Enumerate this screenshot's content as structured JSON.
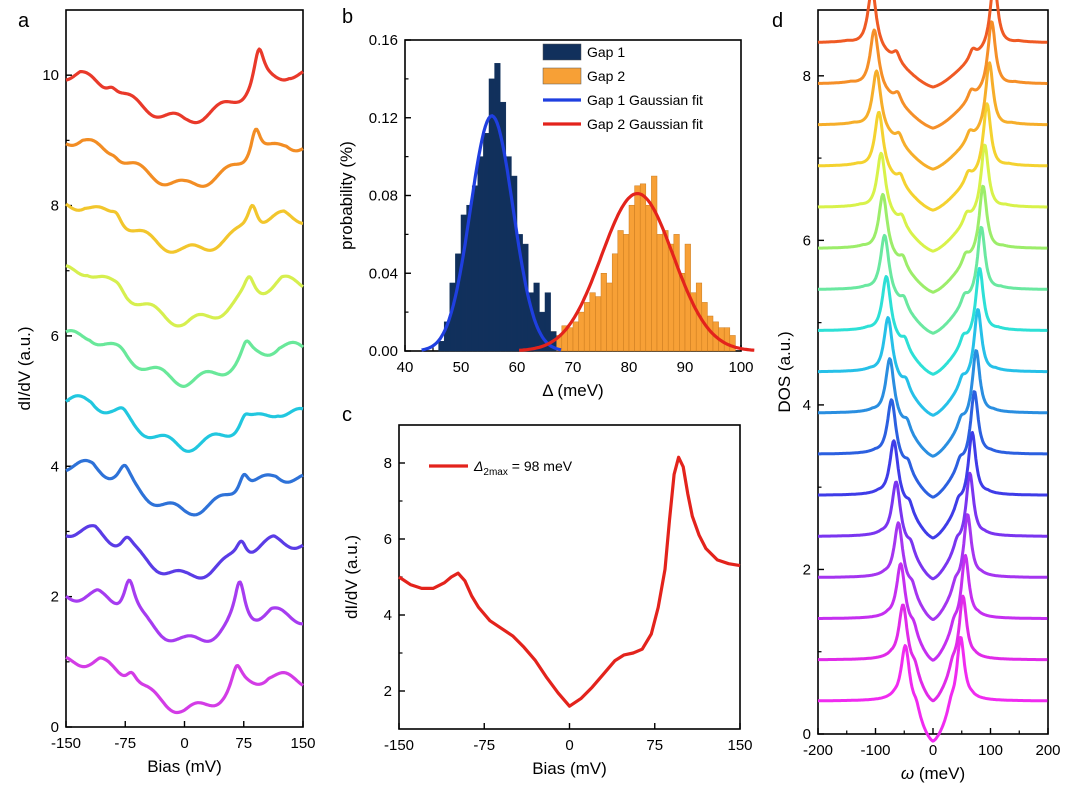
{
  "chart_data": [
    {
      "panel": "a",
      "type": "line",
      "xlabel": "Bias (mV)",
      "ylabel": "dI/dV (a.u.)",
      "xlim": [
        -150,
        150
      ],
      "ylim": [
        0,
        11
      ],
      "xticks": [
        "-150",
        "-75",
        "0",
        "75",
        "150"
      ],
      "yticks": [
        "0",
        "2",
        "4",
        "6",
        "8",
        "10"
      ],
      "series": [
        {
          "color": "#d33ce6",
          "offset": 1.0,
          "gap_left": 67,
          "gap_right": 66,
          "peak_left": 0.25,
          "peak_right": 0.35,
          "min": 0.25,
          "right_end": 0.7
        },
        {
          "color": "#a63cf0",
          "offset": 2.0,
          "gap_left": 70,
          "gap_right": 70,
          "peak_left": 0.6,
          "peak_right": 0.65,
          "min": 1.3,
          "right_end": 1.65
        },
        {
          "color": "#5a3ce6",
          "offset": 3.0,
          "gap_left": 73,
          "gap_right": 72,
          "peak_left": 0.2,
          "peak_right": 0.3,
          "min": 2.3,
          "right_end": 2.8
        },
        {
          "color": "#2e72d8",
          "offset": 4.0,
          "gap_left": 76,
          "gap_right": 75,
          "peak_left": 0.25,
          "peak_right": 0.35,
          "min": 3.3,
          "right_end": 3.8
        },
        {
          "color": "#21c7df",
          "offset": 5.0,
          "gap_left": 78,
          "gap_right": 76,
          "peak_left": 0.1,
          "peak_right": 0.2,
          "min": 4.3,
          "right_end": 4.8
        },
        {
          "color": "#69e89a",
          "offset": 6.0,
          "gap_left": 80,
          "gap_right": 78,
          "peak_left": 0.05,
          "peak_right": 0.25,
          "min": 5.3,
          "right_end": 5.8
        },
        {
          "color": "#d6ef4f",
          "offset": 7.0,
          "gap_left": 83,
          "gap_right": 82,
          "peak_left": 0.1,
          "peak_right": 0.3,
          "min": 6.2,
          "right_end": 6.8
        },
        {
          "color": "#f2c62d",
          "offset": 8.0,
          "gap_left": 86,
          "gap_right": 86,
          "peak_left": 0.2,
          "peak_right": 0.45,
          "min": 7.3,
          "right_end": 7.8
        },
        {
          "color": "#f28d24",
          "offset": 9.0,
          "gap_left": 89,
          "gap_right": 90,
          "peak_left": 0.1,
          "peak_right": 0.55,
          "min": 8.3,
          "right_end": 8.9
        },
        {
          "color": "#e9392a",
          "offset": 10.0,
          "gap_left": 92,
          "gap_right": 94,
          "peak_left": 0.15,
          "peak_right": 0.6,
          "min": 9.3,
          "right_end": 10.0
        }
      ]
    },
    {
      "panel": "b",
      "type": "bar",
      "xlabel": "Δ (meV)",
      "ylabel": "probability (%)",
      "xlim": [
        40,
        100
      ],
      "ylim": [
        0,
        0.16
      ],
      "xticks": [
        "40",
        "50",
        "60",
        "70",
        "80",
        "90",
        "100"
      ],
      "yticks": [
        "0.00",
        "0.04",
        "0.08",
        "0.12",
        "0.16"
      ],
      "bin_width": 1,
      "gap1": {
        "name": "Gap 1",
        "color": "#11305c",
        "bin_starts": [
          46,
          47,
          48,
          49,
          50,
          51,
          52,
          53,
          54,
          55,
          56,
          57,
          58,
          59,
          60,
          61,
          62,
          63,
          64,
          65,
          66
        ],
        "values": [
          0.005,
          0.015,
          0.035,
          0.05,
          0.07,
          0.075,
          0.085,
          0.1,
          0.112,
          0.14,
          0.148,
          0.128,
          0.1,
          0.09,
          0.06,
          0.055,
          0.03,
          0.035,
          0.02,
          0.03,
          0.01
        ]
      },
      "gap2": {
        "name": "Gap 2",
        "color": "#f7a036",
        "bin_starts": [
          63,
          64,
          65,
          66,
          67,
          68,
          69,
          70,
          71,
          72,
          73,
          74,
          75,
          76,
          77,
          78,
          79,
          80,
          81,
          82,
          83,
          84,
          85,
          86,
          87,
          88,
          89,
          90,
          91,
          92,
          93,
          94,
          95,
          96,
          97,
          98
        ],
        "values": [
          0.003,
          0.008,
          0.005,
          0.01,
          0.008,
          0.013,
          0.012,
          0.015,
          0.02,
          0.025,
          0.03,
          0.028,
          0.04,
          0.035,
          0.05,
          0.062,
          0.06,
          0.075,
          0.085,
          0.086,
          0.075,
          0.09,
          0.06,
          0.062,
          0.055,
          0.06,
          0.04,
          0.055,
          0.03,
          0.035,
          0.025,
          0.018,
          0.015,
          0.012,
          0.012,
          0.008
        ]
      },
      "fit1": {
        "name": "Gap 1 Gaussian fit",
        "color": "#1f3fe0",
        "mean": 55.5,
        "sigma": 3.8,
        "amp": 0.121
      },
      "fit2": {
        "name": "Gap 2 Gaussian fit",
        "color": "#e3231c",
        "mean": 81.5,
        "sigma": 6.4,
        "amp": 0.081
      }
    },
    {
      "panel": "c",
      "type": "line",
      "xlabel": "Bias (mV)",
      "ylabel": "dI/dV (a.u.)",
      "xlim": [
        -150,
        150
      ],
      "ylim": [
        1,
        9
      ],
      "xticks": [
        "-150",
        "-75",
        "0",
        "75",
        "150"
      ],
      "yticks": [
        "2",
        "4",
        "6",
        "8"
      ],
      "series": [
        {
          "color": "#e3231c",
          "x": [
            -150,
            -140,
            -130,
            -120,
            -110,
            -104,
            -98,
            -92,
            -86,
            -80,
            -70,
            -60,
            -50,
            -40,
            -30,
            -20,
            -10,
            0,
            10,
            20,
            30,
            40,
            48,
            56,
            64,
            72,
            78,
            84,
            88,
            92,
            96,
            100,
            104,
            108,
            114,
            120,
            130,
            140,
            150
          ],
          "y": [
            5.0,
            4.8,
            4.7,
            4.7,
            4.85,
            5.0,
            5.1,
            4.9,
            4.5,
            4.2,
            3.85,
            3.65,
            3.45,
            3.15,
            2.8,
            2.35,
            1.95,
            1.6,
            1.8,
            2.1,
            2.45,
            2.8,
            2.95,
            3.0,
            3.1,
            3.5,
            4.2,
            5.2,
            6.5,
            7.7,
            8.15,
            7.9,
            7.2,
            6.6,
            6.1,
            5.75,
            5.45,
            5.35,
            5.3
          ]
        }
      ],
      "annotation": {
        "delta": "Δ",
        "subscript": "2max",
        "text": " = 98 meV"
      }
    },
    {
      "panel": "d",
      "type": "line",
      "xlabel": "ω (meV)",
      "ylabel": "DOS (a.u.)",
      "xlim": [
        -200,
        200
      ],
      "ylim": [
        0,
        8.8
      ],
      "xticks": [
        "-200",
        "-100",
        "0",
        "100",
        "200"
      ],
      "yticks": [
        "0",
        "2",
        "4",
        "6",
        "8"
      ],
      "series": [
        {
          "color": "#f02bf0",
          "offset": 0.4,
          "gap": 48
        },
        {
          "color": "#e02be8",
          "offset": 0.9,
          "gap": 52
        },
        {
          "color": "#c52ff0",
          "offset": 1.4,
          "gap": 56
        },
        {
          "color": "#a535f0",
          "offset": 1.9,
          "gap": 60
        },
        {
          "color": "#7a35f0",
          "offset": 2.4,
          "gap": 64
        },
        {
          "color": "#3f3ce8",
          "offset": 2.9,
          "gap": 68
        },
        {
          "color": "#2c60e0",
          "offset": 3.4,
          "gap": 72
        },
        {
          "color": "#2a8ee0",
          "offset": 3.9,
          "gap": 75
        },
        {
          "color": "#26c0e8",
          "offset": 4.4,
          "gap": 78
        },
        {
          "color": "#2de0d6",
          "offset": 4.9,
          "gap": 81
        },
        {
          "color": "#6ae8a0",
          "offset": 5.4,
          "gap": 84
        },
        {
          "color": "#9ced6a",
          "offset": 5.9,
          "gap": 87
        },
        {
          "color": "#d8f24a",
          "offset": 6.4,
          "gap": 90
        },
        {
          "color": "#f4d230",
          "offset": 6.9,
          "gap": 94
        },
        {
          "color": "#f6ae2a",
          "offset": 7.4,
          "gap": 98
        },
        {
          "color": "#f58f28",
          "offset": 7.9,
          "gap": 102
        },
        {
          "color": "#ef5a24",
          "offset": 8.4,
          "gap": 106
        }
      ]
    }
  ],
  "panel_labels": {
    "a": "a",
    "b": "b",
    "c": "c",
    "d": "d"
  }
}
